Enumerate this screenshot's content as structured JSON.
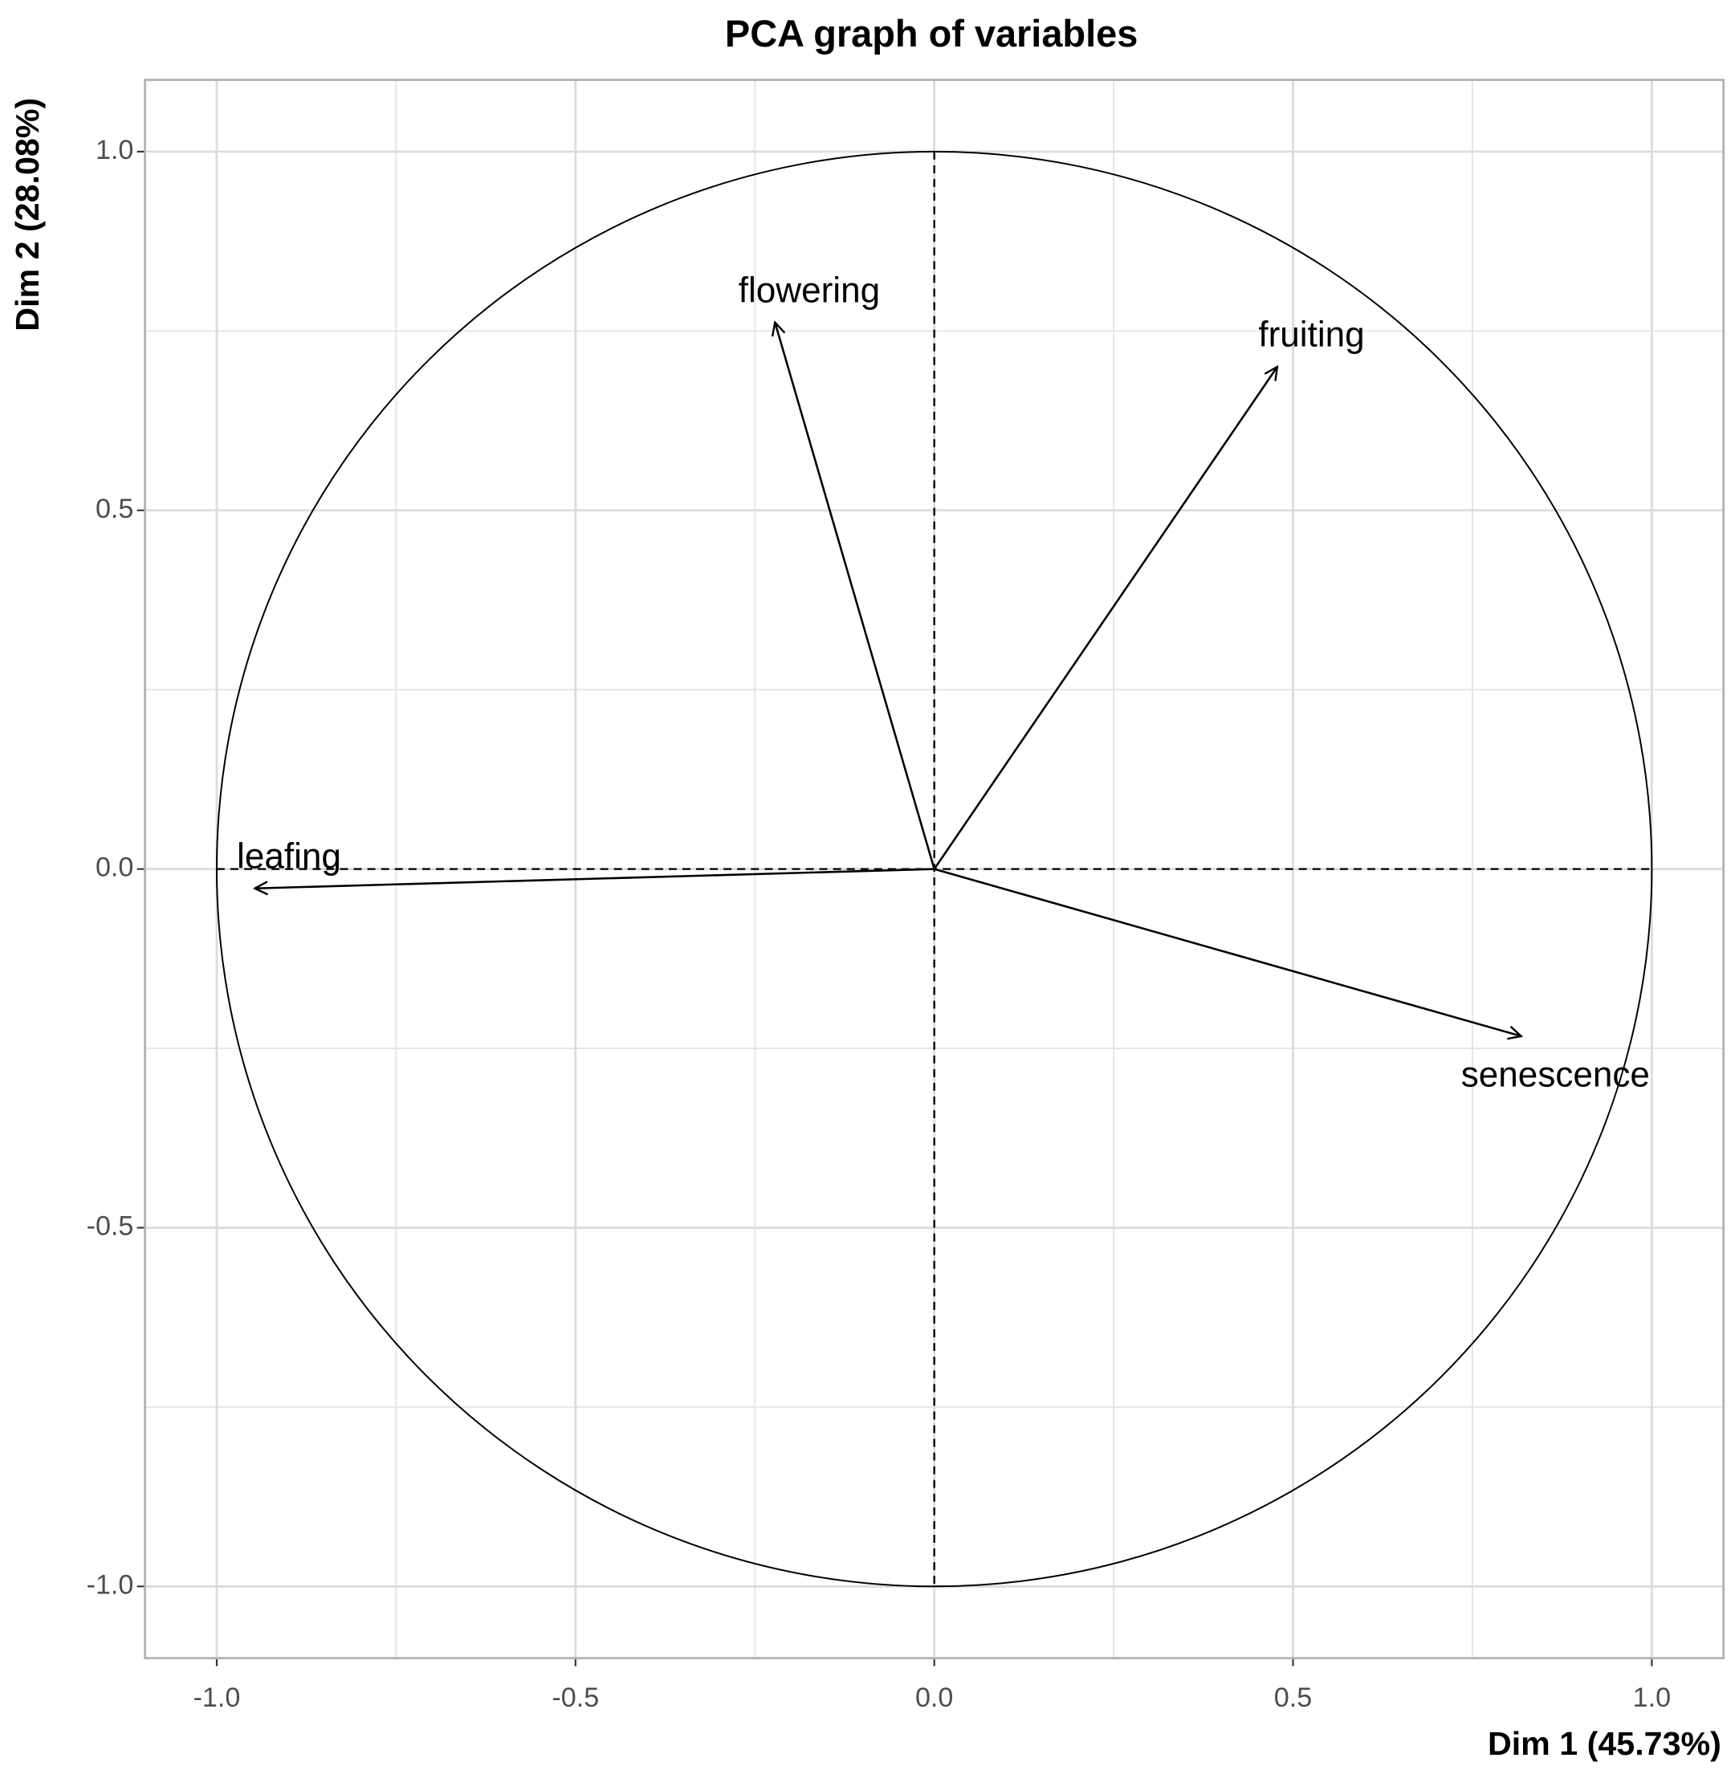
{
  "chart_data": {
    "type": "pca-variables",
    "title": "PCA graph of variables",
    "x_label": "Dim 1 (45.73%)",
    "y_label": "Dim 2 (28.08%)",
    "categories": [
      "flowering",
      "fruiting",
      "leafing",
      "senescence"
    ],
    "x": [
      -0.222,
      0.478,
      -0.947,
      0.818
    ],
    "values": [
      0.762,
      0.7,
      -0.027,
      -0.233
    ],
    "color": "#000000",
    "xlim": [
      -1.1,
      1.1
    ],
    "ylim": [
      -1.1,
      1.1
    ],
    "xticks": [
      {
        "value": -1,
        "label": "-1.0"
      },
      {
        "value": -0.5,
        "label": "-0.5"
      },
      {
        "value": 0,
        "label": "0.0"
      },
      {
        "value": 0.5,
        "label": "0.5"
      },
      {
        "value": 1,
        "label": "1.0"
      }
    ],
    "yticks": [
      {
        "value": -1,
        "label": "-1.0"
      },
      {
        "value": -0.5,
        "label": "-0.5"
      },
      {
        "value": 0,
        "label": "0.0"
      },
      {
        "value": 0.5,
        "label": "0.5"
      },
      {
        "value": 1,
        "label": "1.0"
      }
    ],
    "minor_ticks": [
      -0.75,
      -0.25,
      0.25,
      0.75
    ],
    "grid": true
  }
}
